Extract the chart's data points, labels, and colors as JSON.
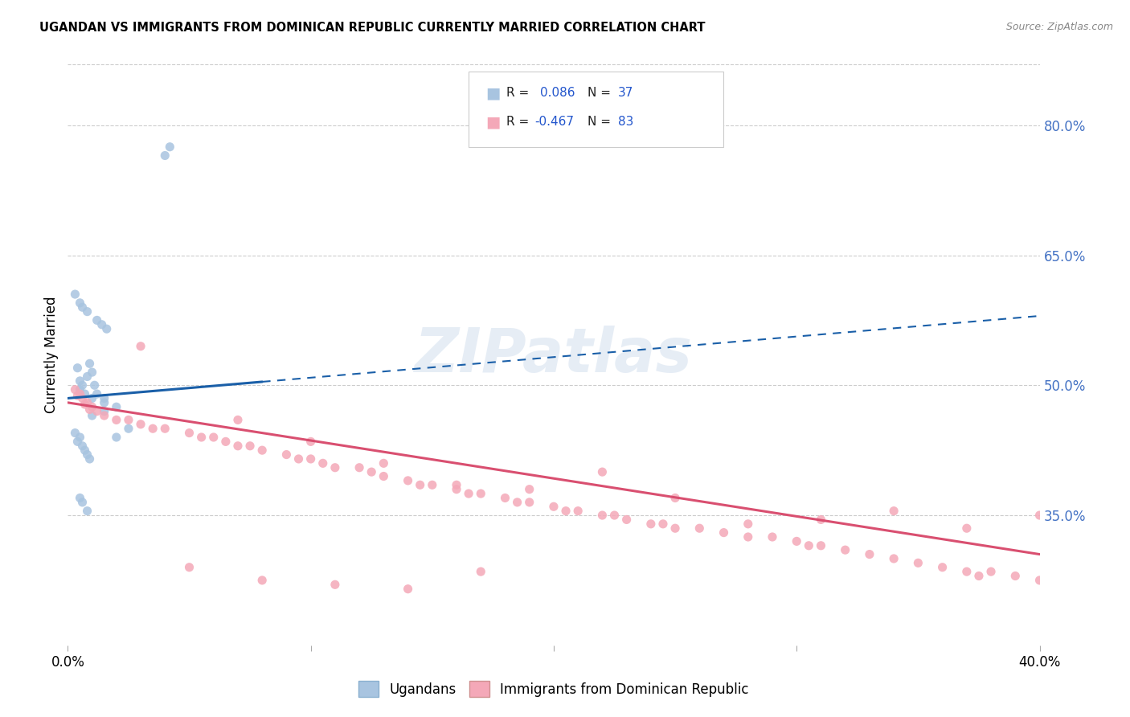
{
  "title": "UGANDAN VS IMMIGRANTS FROM DOMINICAN REPUBLIC CURRENTLY MARRIED CORRELATION CHART",
  "source": "Source: ZipAtlas.com",
  "ylabel": "Currently Married",
  "right_yticks": [
    35.0,
    50.0,
    65.0,
    80.0
  ],
  "legend_label_blue": "Ugandans",
  "legend_label_pink": "Immigrants from Dominican Republic",
  "blue_color": "#a8c4e0",
  "pink_color": "#f4a8b8",
  "blue_line_color": "#1a5fa8",
  "pink_line_color": "#d94f70",
  "watermark": "ZIPatlas",
  "xmin": 0.0,
  "xmax": 40.0,
  "ymin": 20.0,
  "ymax": 87.0,
  "blue_line_x0": 0.0,
  "blue_line_y0": 48.5,
  "blue_line_x1": 40.0,
  "blue_line_y1": 58.0,
  "blue_solid_end_x": 8.0,
  "pink_line_x0": 0.0,
  "pink_line_y0": 48.0,
  "pink_line_x1": 40.0,
  "pink_line_y1": 30.5,
  "blue_pts_x": [
    0.5,
    0.7,
    1.0,
    1.5,
    2.0,
    0.3,
    0.5,
    0.6,
    0.8,
    1.2,
    1.4,
    1.6,
    0.4,
    0.5,
    0.6,
    0.8,
    0.9,
    1.0,
    1.1,
    1.2,
    0.3,
    0.4,
    0.5,
    0.6,
    0.7,
    0.8,
    0.9,
    1.0,
    0.5,
    0.6,
    0.8,
    1.5,
    2.5,
    2.0,
    1.5,
    4.0,
    4.2
  ],
  "blue_pts_y": [
    49.5,
    49.0,
    48.5,
    48.0,
    47.5,
    60.5,
    59.5,
    59.0,
    58.5,
    57.5,
    57.0,
    56.5,
    52.0,
    50.5,
    50.0,
    51.0,
    52.5,
    51.5,
    50.0,
    49.0,
    44.5,
    43.5,
    44.0,
    43.0,
    42.5,
    42.0,
    41.5,
    46.5,
    37.0,
    36.5,
    35.5,
    47.0,
    45.0,
    44.0,
    48.5,
    76.5,
    77.5
  ],
  "pink_pts_x": [
    0.3,
    0.5,
    0.6,
    0.8,
    1.0,
    0.4,
    0.7,
    0.9,
    1.2,
    1.5,
    2.0,
    2.5,
    3.0,
    3.5,
    4.0,
    5.0,
    5.5,
    6.0,
    6.5,
    7.0,
    7.5,
    8.0,
    9.0,
    9.5,
    10.0,
    10.5,
    11.0,
    12.0,
    12.5,
    13.0,
    14.0,
    14.5,
    15.0,
    16.0,
    16.5,
    17.0,
    18.0,
    18.5,
    19.0,
    20.0,
    20.5,
    21.0,
    22.0,
    22.5,
    23.0,
    24.0,
    24.5,
    25.0,
    26.0,
    27.0,
    28.0,
    29.0,
    30.0,
    30.5,
    31.0,
    32.0,
    33.0,
    34.0,
    35.0,
    36.0,
    37.0,
    37.5,
    38.0,
    39.0,
    40.0,
    3.0,
    7.0,
    10.0,
    13.0,
    16.0,
    19.0,
    22.0,
    25.0,
    28.0,
    31.0,
    34.0,
    37.0,
    40.0,
    5.0,
    8.0,
    11.0,
    14.0,
    17.0
  ],
  "pink_pts_y": [
    49.5,
    49.0,
    48.5,
    48.0,
    47.5,
    48.8,
    47.8,
    47.2,
    47.0,
    46.5,
    46.0,
    46.0,
    45.5,
    45.0,
    45.0,
    44.5,
    44.0,
    44.0,
    43.5,
    43.0,
    43.0,
    42.5,
    42.0,
    41.5,
    41.5,
    41.0,
    40.5,
    40.5,
    40.0,
    39.5,
    39.0,
    38.5,
    38.5,
    38.0,
    37.5,
    37.5,
    37.0,
    36.5,
    36.5,
    36.0,
    35.5,
    35.5,
    35.0,
    35.0,
    34.5,
    34.0,
    34.0,
    33.5,
    33.5,
    33.0,
    32.5,
    32.5,
    32.0,
    31.5,
    31.5,
    31.0,
    30.5,
    30.0,
    29.5,
    29.0,
    28.5,
    28.0,
    28.5,
    28.0,
    27.5,
    54.5,
    46.0,
    43.5,
    41.0,
    38.5,
    38.0,
    40.0,
    37.0,
    34.0,
    34.5,
    35.5,
    33.5,
    35.0,
    29.0,
    27.5,
    27.0,
    26.5,
    28.5
  ]
}
